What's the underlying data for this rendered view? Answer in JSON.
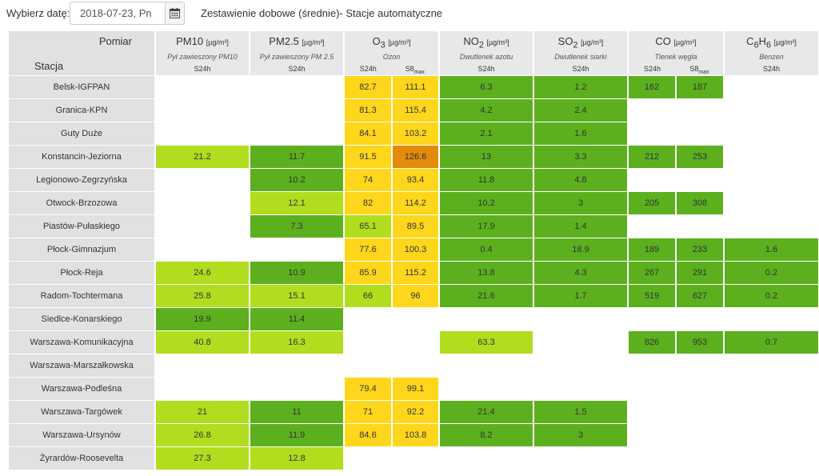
{
  "header": {
    "date_label": "Wybierz datę:",
    "date_value": "2018-07-23, Pn",
    "title": "Zestawienie dobowe (średnie)- Stacje automatyczne"
  },
  "icons": {
    "calendar": "calendar-icon"
  },
  "table": {
    "corner_top": "Pomiar",
    "corner_bottom": "Stacja",
    "params": [
      {
        "name": "PM10",
        "sub": "",
        "unit": "[µg/m³]",
        "desc": "Pył zawieszony PM10",
        "stats": [
          "S24h"
        ]
      },
      {
        "name": "PM2.5",
        "sub": "",
        "unit": "[µg/m³]",
        "desc": "Pył zawieszony PM 2.5",
        "stats": [
          "S24h"
        ]
      },
      {
        "name": "O",
        "sub": "3",
        "unit": "[µg/m³]",
        "desc": "Ozon",
        "stats": [
          "S24h",
          "S8max"
        ]
      },
      {
        "name": "NO",
        "sub": "2",
        "unit": "[µg/m³]",
        "desc": "Dwutlenek azotu",
        "stats": [
          "S24h"
        ]
      },
      {
        "name": "SO",
        "sub": "2",
        "unit": "[µg/m³]",
        "desc": "Dwutlenek siarki",
        "stats": [
          "S24h"
        ]
      },
      {
        "name": "CO",
        "sub": "",
        "unit": "[µg/m³]",
        "desc": "Tlenek węgla",
        "stats": [
          "S24h",
          "S8max"
        ]
      },
      {
        "name": "C6H6",
        "sub": "",
        "unit": "[µg/m³]",
        "desc": "Benzen",
        "stats": [
          "S24h"
        ]
      }
    ],
    "colors": {
      "very_good": "#5cb01e",
      "good": "#b0dd1d",
      "moderate": "#fed61b",
      "sufficient": "#e48b0c",
      "none": "#ffffff"
    },
    "rows": [
      {
        "station": "Belsk-IGFPAN",
        "cells": [
          {
            "v": "",
            "c": "none"
          },
          {
            "v": "",
            "c": "none"
          },
          {
            "v": "82.7",
            "c": "moderate"
          },
          {
            "v": "111.1",
            "c": "moderate"
          },
          {
            "v": "6.3",
            "c": "very_good"
          },
          {
            "v": "1.2",
            "c": "very_good"
          },
          {
            "v": "162",
            "c": "very_good"
          },
          {
            "v": "187",
            "c": "very_good"
          },
          {
            "v": "",
            "c": "none"
          }
        ]
      },
      {
        "station": "Granica-KPN",
        "cells": [
          {
            "v": "",
            "c": "none"
          },
          {
            "v": "",
            "c": "none"
          },
          {
            "v": "81.3",
            "c": "moderate"
          },
          {
            "v": "115.4",
            "c": "moderate"
          },
          {
            "v": "4.2",
            "c": "very_good"
          },
          {
            "v": "2.4",
            "c": "very_good"
          },
          {
            "v": "",
            "c": "none"
          },
          {
            "v": "",
            "c": "none"
          },
          {
            "v": "",
            "c": "none"
          }
        ]
      },
      {
        "station": "Guty Duże",
        "cells": [
          {
            "v": "",
            "c": "none"
          },
          {
            "v": "",
            "c": "none"
          },
          {
            "v": "84.1",
            "c": "moderate"
          },
          {
            "v": "103.2",
            "c": "moderate"
          },
          {
            "v": "2.1",
            "c": "very_good"
          },
          {
            "v": "1.6",
            "c": "very_good"
          },
          {
            "v": "",
            "c": "none"
          },
          {
            "v": "",
            "c": "none"
          },
          {
            "v": "",
            "c": "none"
          }
        ]
      },
      {
        "station": "Konstancin-Jeziorna",
        "cells": [
          {
            "v": "21.2",
            "c": "good"
          },
          {
            "v": "11.7",
            "c": "very_good"
          },
          {
            "v": "91.5",
            "c": "moderate"
          },
          {
            "v": "126.6",
            "c": "sufficient"
          },
          {
            "v": "13",
            "c": "very_good"
          },
          {
            "v": "3.3",
            "c": "very_good"
          },
          {
            "v": "212",
            "c": "very_good"
          },
          {
            "v": "253",
            "c": "very_good"
          },
          {
            "v": "",
            "c": "none"
          }
        ]
      },
      {
        "station": "Legionowo-Zegrzyńska",
        "cells": [
          {
            "v": "",
            "c": "none"
          },
          {
            "v": "10.2",
            "c": "very_good"
          },
          {
            "v": "74",
            "c": "moderate"
          },
          {
            "v": "93.4",
            "c": "moderate"
          },
          {
            "v": "11.8",
            "c": "very_good"
          },
          {
            "v": "4.8",
            "c": "very_good"
          },
          {
            "v": "",
            "c": "none"
          },
          {
            "v": "",
            "c": "none"
          },
          {
            "v": "",
            "c": "none"
          }
        ]
      },
      {
        "station": "Otwock-Brzozowa",
        "cells": [
          {
            "v": "",
            "c": "none"
          },
          {
            "v": "12.1",
            "c": "good"
          },
          {
            "v": "82",
            "c": "moderate"
          },
          {
            "v": "114.2",
            "c": "moderate"
          },
          {
            "v": "10.2",
            "c": "very_good"
          },
          {
            "v": "3",
            "c": "very_good"
          },
          {
            "v": "205",
            "c": "very_good"
          },
          {
            "v": "308",
            "c": "very_good"
          },
          {
            "v": "",
            "c": "none"
          }
        ]
      },
      {
        "station": "Piastów-Pułaskiego",
        "cells": [
          {
            "v": "",
            "c": "none"
          },
          {
            "v": "7.3",
            "c": "very_good"
          },
          {
            "v": "65.1",
            "c": "good"
          },
          {
            "v": "89.5",
            "c": "moderate"
          },
          {
            "v": "17.9",
            "c": "very_good"
          },
          {
            "v": "1.4",
            "c": "very_good"
          },
          {
            "v": "",
            "c": "none"
          },
          {
            "v": "",
            "c": "none"
          },
          {
            "v": "",
            "c": "none"
          }
        ]
      },
      {
        "station": "Płock-Gimnazjum",
        "cells": [
          {
            "v": "",
            "c": "none"
          },
          {
            "v": "",
            "c": "none"
          },
          {
            "v": "77.6",
            "c": "moderate"
          },
          {
            "v": "100.3",
            "c": "moderate"
          },
          {
            "v": "0.4",
            "c": "very_good"
          },
          {
            "v": "18.9",
            "c": "very_good"
          },
          {
            "v": "189",
            "c": "very_good"
          },
          {
            "v": "233",
            "c": "very_good"
          },
          {
            "v": "1.6",
            "c": "very_good"
          }
        ]
      },
      {
        "station": "Płock-Reja",
        "cells": [
          {
            "v": "24.6",
            "c": "good"
          },
          {
            "v": "10.9",
            "c": "very_good"
          },
          {
            "v": "85.9",
            "c": "moderate"
          },
          {
            "v": "115.2",
            "c": "moderate"
          },
          {
            "v": "13.8",
            "c": "very_good"
          },
          {
            "v": "4.3",
            "c": "very_good"
          },
          {
            "v": "267",
            "c": "very_good"
          },
          {
            "v": "291",
            "c": "very_good"
          },
          {
            "v": "0.2",
            "c": "very_good"
          }
        ]
      },
      {
        "station": "Radom-Tochtermana",
        "cells": [
          {
            "v": "25.8",
            "c": "good"
          },
          {
            "v": "15.1",
            "c": "good"
          },
          {
            "v": "66",
            "c": "good"
          },
          {
            "v": "96",
            "c": "moderate"
          },
          {
            "v": "21.6",
            "c": "very_good"
          },
          {
            "v": "1.7",
            "c": "very_good"
          },
          {
            "v": "519",
            "c": "very_good"
          },
          {
            "v": "627",
            "c": "very_good"
          },
          {
            "v": "0.2",
            "c": "very_good"
          }
        ]
      },
      {
        "station": "Siedlce-Konarskiego",
        "cells": [
          {
            "v": "19.9",
            "c": "very_good"
          },
          {
            "v": "11.4",
            "c": "very_good"
          },
          {
            "v": "",
            "c": "none"
          },
          {
            "v": "",
            "c": "none"
          },
          {
            "v": "",
            "c": "none"
          },
          {
            "v": "",
            "c": "none"
          },
          {
            "v": "",
            "c": "none"
          },
          {
            "v": "",
            "c": "none"
          },
          {
            "v": "",
            "c": "none"
          }
        ]
      },
      {
        "station": "Warszawa-Komunikacyjna",
        "cells": [
          {
            "v": "40.8",
            "c": "good"
          },
          {
            "v": "16.3",
            "c": "good"
          },
          {
            "v": "",
            "c": "none"
          },
          {
            "v": "",
            "c": "none"
          },
          {
            "v": "63.3",
            "c": "good"
          },
          {
            "v": "",
            "c": "none"
          },
          {
            "v": "826",
            "c": "very_good"
          },
          {
            "v": "953",
            "c": "very_good"
          },
          {
            "v": "0.7",
            "c": "very_good"
          }
        ]
      },
      {
        "station": "Warszawa-Marszałkowska",
        "cells": [
          {
            "v": "",
            "c": "none"
          },
          {
            "v": "",
            "c": "none"
          },
          {
            "v": "",
            "c": "none"
          },
          {
            "v": "",
            "c": "none"
          },
          {
            "v": "",
            "c": "none"
          },
          {
            "v": "",
            "c": "none"
          },
          {
            "v": "",
            "c": "none"
          },
          {
            "v": "",
            "c": "none"
          },
          {
            "v": "",
            "c": "none"
          }
        ]
      },
      {
        "station": "Warszawa-Podleśna",
        "cells": [
          {
            "v": "",
            "c": "none"
          },
          {
            "v": "",
            "c": "none"
          },
          {
            "v": "79.4",
            "c": "moderate"
          },
          {
            "v": "99.1",
            "c": "moderate"
          },
          {
            "v": "",
            "c": "none"
          },
          {
            "v": "",
            "c": "none"
          },
          {
            "v": "",
            "c": "none"
          },
          {
            "v": "",
            "c": "none"
          },
          {
            "v": "",
            "c": "none"
          }
        ]
      },
      {
        "station": "Warszawa-Targówek",
        "cells": [
          {
            "v": "21",
            "c": "good"
          },
          {
            "v": "11",
            "c": "very_good"
          },
          {
            "v": "71",
            "c": "moderate"
          },
          {
            "v": "92.2",
            "c": "moderate"
          },
          {
            "v": "21.4",
            "c": "very_good"
          },
          {
            "v": "1.5",
            "c": "very_good"
          },
          {
            "v": "",
            "c": "none"
          },
          {
            "v": "",
            "c": "none"
          },
          {
            "v": "",
            "c": "none"
          }
        ]
      },
      {
        "station": "Warszawa-Ursynów",
        "cells": [
          {
            "v": "26.8",
            "c": "good"
          },
          {
            "v": "11.9",
            "c": "very_good"
          },
          {
            "v": "84.6",
            "c": "moderate"
          },
          {
            "v": "103.8",
            "c": "moderate"
          },
          {
            "v": "8.2",
            "c": "very_good"
          },
          {
            "v": "3",
            "c": "very_good"
          },
          {
            "v": "",
            "c": "none"
          },
          {
            "v": "",
            "c": "none"
          },
          {
            "v": "",
            "c": "none"
          }
        ]
      },
      {
        "station": "Żyrardów-Roosevelta",
        "cells": [
          {
            "v": "27.3",
            "c": "good"
          },
          {
            "v": "12.8",
            "c": "good"
          },
          {
            "v": "",
            "c": "none"
          },
          {
            "v": "",
            "c": "none"
          },
          {
            "v": "",
            "c": "none"
          },
          {
            "v": "",
            "c": "none"
          },
          {
            "v": "",
            "c": "none"
          },
          {
            "v": "",
            "c": "none"
          },
          {
            "v": "",
            "c": "none"
          }
        ]
      }
    ]
  }
}
